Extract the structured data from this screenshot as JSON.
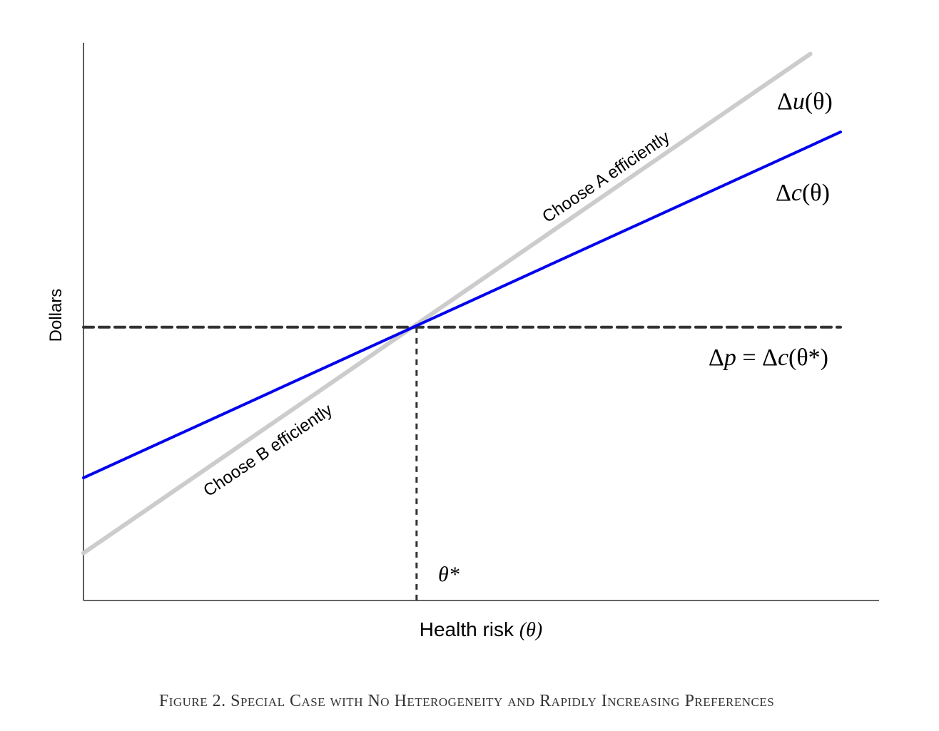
{
  "chart_data": {
    "type": "line",
    "title": "",
    "xlabel": "Health risk",
    "xlabel_symbol": "(θ)",
    "ylabel": "Dollars",
    "xlim": [
      0,
      10
    ],
    "ylim": [
      0,
      10
    ],
    "grid": false,
    "series": [
      {
        "name": "Δu(θ)",
        "color": "#cccccc",
        "x": [
          0,
          9.6
        ],
        "y": [
          0.85,
          9.8
        ]
      },
      {
        "name": "Δc(θ)",
        "color": "#0000ee",
        "x": [
          0,
          10
        ],
        "y": [
          2.2,
          8.4
        ]
      },
      {
        "name": "Δp = Δc(θ*)",
        "color": "#333333",
        "style": "dashed",
        "x": [
          0,
          10
        ],
        "y": [
          4.9,
          4.9
        ]
      }
    ],
    "vline": {
      "x": 4.4,
      "label": "θ*",
      "color": "#333333",
      "style": "dashed"
    },
    "annotations": [
      {
        "text": "Choose A efficiently",
        "region": "above crossing, along Δu(θ)"
      },
      {
        "text": "Choose B efficiently",
        "region": "below crossing, along Δu(θ)"
      }
    ]
  },
  "labels": {
    "du": {
      "delta": "Δ",
      "fn": "u",
      "arg": "(θ)"
    },
    "dc": {
      "delta": "Δ",
      "fn": "c",
      "arg": "(θ)"
    },
    "dp": {
      "delta": "Δ",
      "fn": "p",
      "eq": " = ",
      "delta2": "Δ",
      "fn2": "c",
      "arg": "(θ*)"
    },
    "theta_star": "θ*",
    "choose_a": "Choose A efficiently",
    "choose_b": "Choose B efficiently"
  },
  "caption": "Figure 2. Special Case with No Heterogeneity and Rapidly Increasing Preferences"
}
